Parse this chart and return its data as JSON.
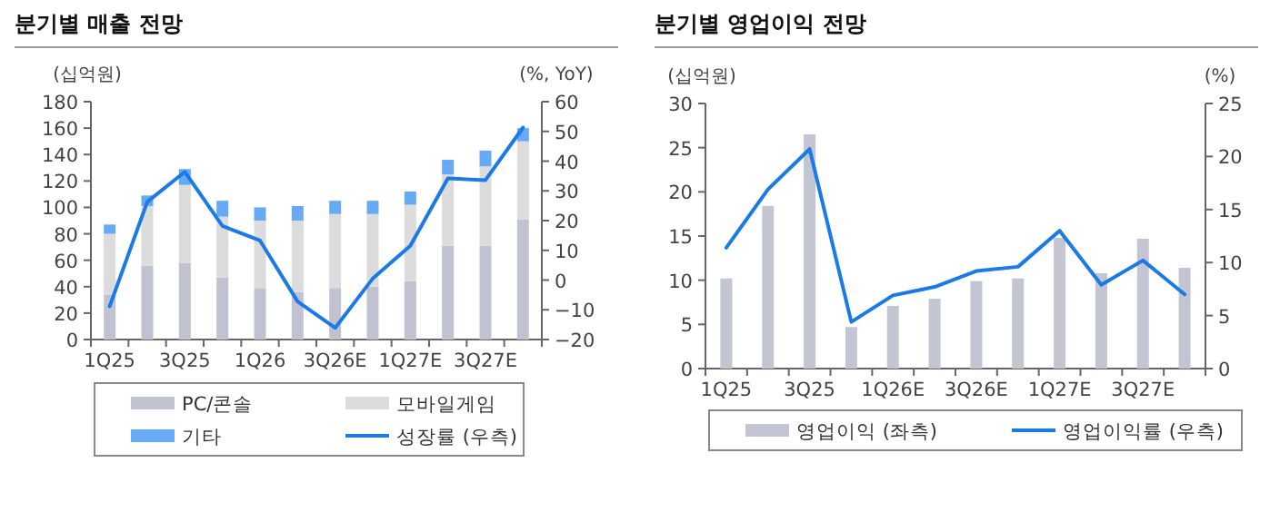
{
  "chart_data": [
    {
      "type": "bar",
      "title": "분기별 매출 전망",
      "ylabel": "(십억원)",
      "y2label": "(%, YoY)",
      "stacked": true,
      "legend": "bottom",
      "categories": [
        "1Q25",
        null,
        "3Q25",
        null,
        "1Q26",
        null,
        "3Q26E",
        null,
        "1Q27E",
        null,
        "3Q27E",
        null
      ],
      "ylim": [
        0,
        180
      ],
      "yticks": [
        0,
        20,
        40,
        60,
        80,
        100,
        120,
        140,
        160,
        180
      ],
      "y2lim": [
        -20,
        60
      ],
      "y2ticks": [
        -20,
        -10,
        0,
        10,
        20,
        30,
        40,
        50,
        60
      ],
      "series": [
        {
          "name": "PC/콘솔",
          "color": "#c0c2d2",
          "values": [
            34,
            56,
            58,
            47,
            39,
            36,
            39,
            40,
            44,
            71,
            71,
            91
          ]
        },
        {
          "name": "모바일게임",
          "color": "#dcdcdc",
          "values": [
            46,
            45,
            59,
            46,
            51,
            54,
            56,
            55,
            58,
            54,
            60,
            59
          ]
        },
        {
          "name": "기타",
          "color": "#66aaf5",
          "values": [
            7,
            8,
            12,
            12,
            10,
            11,
            10,
            10,
            10,
            11,
            12,
            10
          ]
        },
        {
          "name": "성장률 (우측)",
          "type": "line",
          "axis": "y2",
          "color": "#1a7ae8",
          "values": [
            -8.8,
            26.3,
            36.4,
            18.2,
            13.3,
            -7.2,
            -16.1,
            0.5,
            11.5,
            34.2,
            33.6,
            51.3
          ]
        }
      ]
    },
    {
      "type": "bar",
      "title": "분기별 영업이익 전망",
      "ylabel": "(십억원)",
      "y2label": "(%)",
      "legend": "bottom",
      "categories": [
        "1Q25",
        null,
        "3Q25",
        null,
        "1Q26E",
        null,
        "3Q26E",
        null,
        "1Q27E",
        null,
        "3Q27E",
        null
      ],
      "ylim": [
        0,
        30
      ],
      "yticks": [
        0,
        5,
        10,
        15,
        20,
        25,
        30
      ],
      "y2lim": [
        0,
        25
      ],
      "y2ticks": [
        0,
        5,
        10,
        15,
        20,
        25
      ],
      "series": [
        {
          "name": "영업이익 (좌측)",
          "color": "#c3c5d3",
          "values": [
            10.2,
            18.4,
            26.5,
            4.7,
            7.1,
            7.9,
            9.9,
            10.2,
            14.8,
            10.8,
            14.7,
            11.4
          ]
        },
        {
          "name": "영업이익률 (우측)",
          "type": "line",
          "axis": "y2",
          "color": "#1a7ae8",
          "values": [
            11.4,
            16.9,
            20.7,
            4.4,
            6.9,
            7.7,
            9.2,
            9.6,
            13.0,
            7.9,
            10.2,
            7.0
          ]
        }
      ]
    }
  ]
}
